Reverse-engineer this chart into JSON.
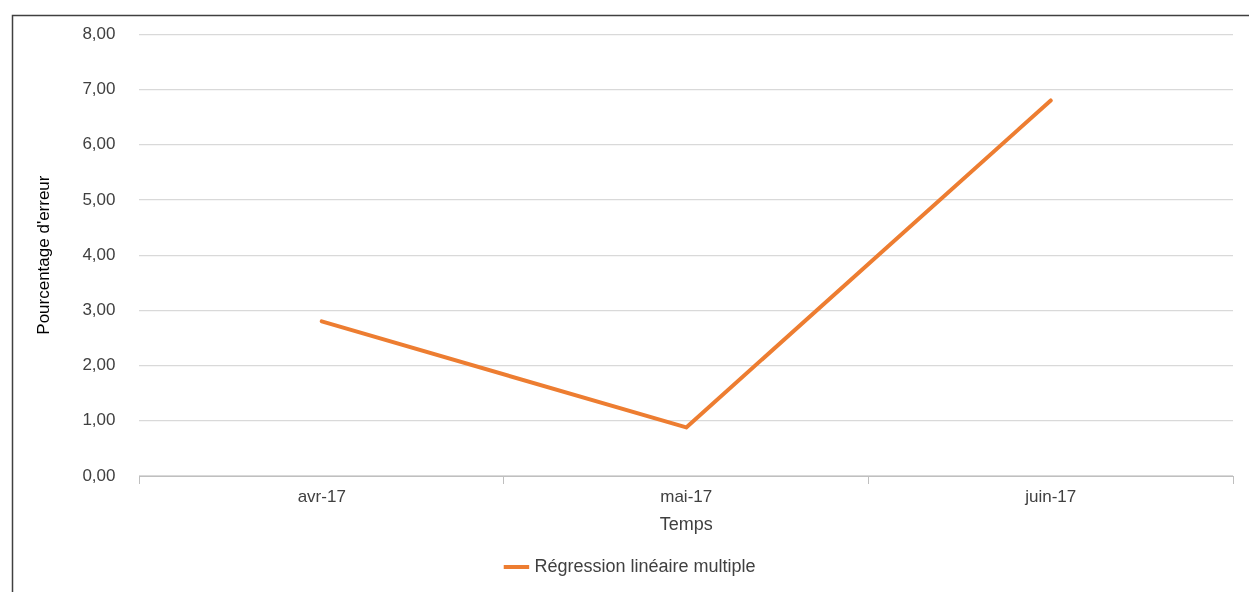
{
  "chart_data": {
    "type": "line",
    "xlabel": "Temps",
    "ylabel": "Pourcentage d'erreur",
    "categories": [
      "avr-17",
      "mai-17",
      "juin-17"
    ],
    "series": [
      {
        "name": "Régression linéaire multiple",
        "color": "#ed7d31",
        "values": [
          2.8,
          0.88,
          6.8
        ]
      }
    ],
    "ylim": [
      0,
      8
    ],
    "yticks": [
      {
        "value": 0,
        "label": "0,00"
      },
      {
        "value": 1,
        "label": "1,00"
      },
      {
        "value": 2,
        "label": "2,00"
      },
      {
        "value": 3,
        "label": "3,00"
      },
      {
        "value": 4,
        "label": "4,00"
      },
      {
        "value": 5,
        "label": "5,00"
      },
      {
        "value": 6,
        "label": "6,00"
      },
      {
        "value": 7,
        "label": "7,00"
      },
      {
        "value": 8,
        "label": "8,00"
      }
    ],
    "grid": "y",
    "legend": "bottom",
    "marker": "none",
    "line_style": "solid"
  }
}
